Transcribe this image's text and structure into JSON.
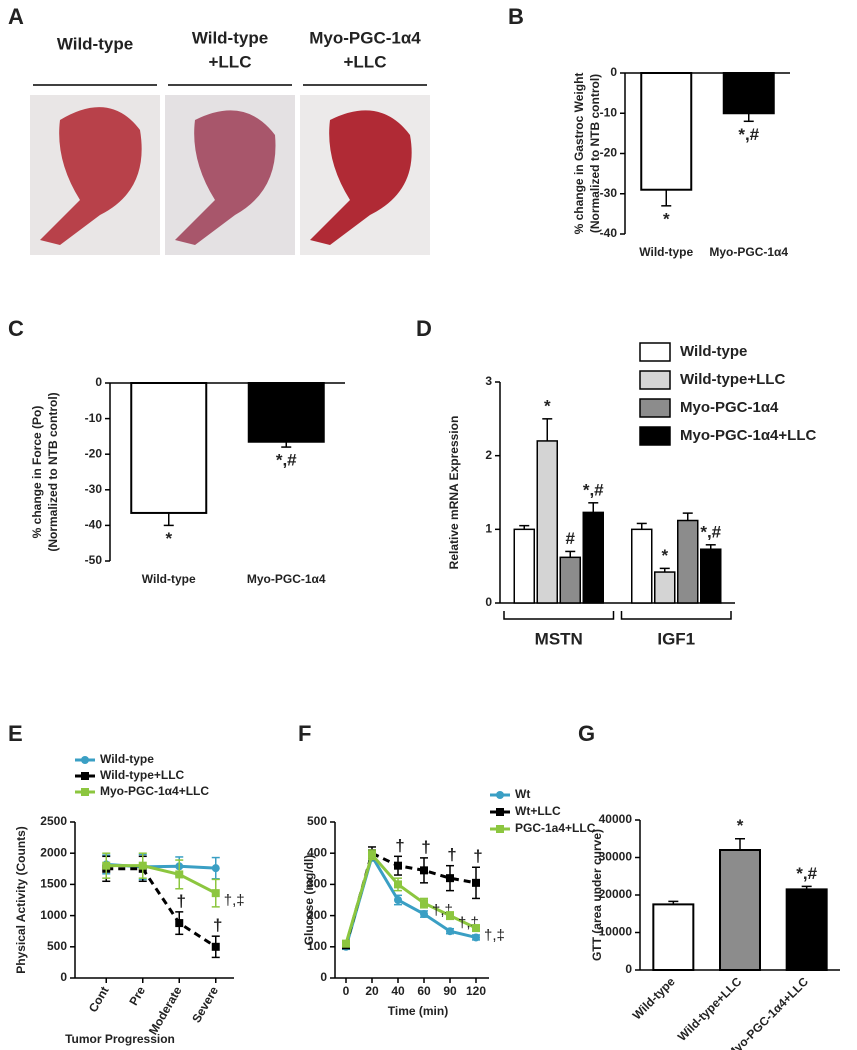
{
  "panel_a": {
    "label": "A",
    "captions": [
      [
        "Wild-type"
      ],
      [
        "Wild-type",
        "+LLC"
      ],
      [
        "Myo-PGC-1α4",
        "+LLC"
      ]
    ]
  },
  "chart_data": [
    {
      "type": "bar",
      "label": "B",
      "ylabel": [
        "% change in Gastroc Weight",
        "(Normalized to NTB control)"
      ],
      "categories": [
        "Wild-type",
        "Myo-PGC-1α4"
      ],
      "values": [
        -29,
        -10
      ],
      "errors": [
        4,
        2
      ],
      "colors": [
        "#ffffff",
        "#000000"
      ],
      "annotations": [
        "*",
        "*,#"
      ],
      "ylim": [
        -40,
        0
      ],
      "yticks": [
        0,
        -10,
        -20,
        -30,
        -40
      ]
    },
    {
      "type": "bar",
      "label": "C",
      "ylabel": [
        "% change in Force (Po)",
        "(Normalized to NTB control)"
      ],
      "categories": [
        "Wild-type",
        "Myo-PGC-1α4"
      ],
      "values": [
        -36.5,
        -16.5
      ],
      "errors": [
        3.5,
        1.5
      ],
      "colors": [
        "#ffffff",
        "#000000"
      ],
      "annotations": [
        "*",
        "*,#"
      ],
      "ylim": [
        -50,
        0
      ],
      "yticks": [
        0,
        -10,
        -20,
        -30,
        -40,
        -50
      ]
    },
    {
      "type": "groupedbar",
      "label": "D",
      "ylabel": [
        "Relative mRNA Expression"
      ],
      "categories": [
        "MSTN",
        "IGF1"
      ],
      "series": [
        {
          "name": "Wild-type",
          "color": "#ffffff",
          "values": [
            1.0,
            1.0
          ],
          "errors": [
            0.05,
            0.08
          ],
          "annotations": [
            null,
            null
          ]
        },
        {
          "name": "Wild-type+LLC",
          "color": "#d4d4d4",
          "values": [
            2.2,
            0.42
          ],
          "errors": [
            0.3,
            0.05
          ],
          "annotations": [
            "*",
            "*"
          ]
        },
        {
          "name": "Myo-PGC-1α4",
          "color": "#8c8c8c",
          "values": [
            0.62,
            1.12
          ],
          "errors": [
            0.08,
            0.1
          ],
          "annotations": [
            "#",
            null
          ]
        },
        {
          "name": "Myo-PGC-1α4+LLC",
          "color": "#000000",
          "values": [
            1.23,
            0.73
          ],
          "errors": [
            0.13,
            0.06
          ],
          "annotations": [
            "*,#",
            "*,#"
          ]
        }
      ],
      "ylim": [
        0,
        3
      ],
      "yticks": [
        0,
        1,
        2,
        3
      ]
    },
    {
      "type": "line",
      "label": "E",
      "ylabel": [
        "Physical Activity (Counts)"
      ],
      "xlabel": "Tumor Progression",
      "categories": [
        "Cont",
        "Pre",
        "Moderate",
        "Severe"
      ],
      "series": [
        {
          "name": "Wild-type",
          "color": "#3a9fc4",
          "dashed": false,
          "values": [
            1820,
            1780,
            1790,
            1760
          ],
          "errors": [
            150,
            200,
            150,
            170
          ],
          "annotations": [
            null,
            null,
            null,
            null
          ]
        },
        {
          "name": "Wild-type+LLC",
          "color": "#000000",
          "dashed": true,
          "values": [
            1750,
            1750,
            880,
            500
          ],
          "errors": [
            200,
            200,
            180,
            170
          ],
          "annotations": [
            null,
            null,
            "†",
            "†"
          ]
        },
        {
          "name": "Myo-PGC-1α4+LLC",
          "color": "#8cc63f",
          "dashed": false,
          "values": [
            1800,
            1800,
            1660,
            1360
          ],
          "errors": [
            200,
            200,
            230,
            220
          ],
          "annotations": [
            null,
            null,
            null,
            "†,‡"
          ]
        }
      ],
      "ylim": [
        0,
        2500
      ],
      "yticks": [
        0,
        500,
        1000,
        1500,
        2000,
        2500
      ]
    },
    {
      "type": "line",
      "label": "F",
      "ylabel": [
        "Glucose (mg/dl)"
      ],
      "xlabel": "Time (min)",
      "categories": [
        "0",
        "20",
        "40",
        "60",
        "90",
        "120"
      ],
      "series": [
        {
          "name": "Wt",
          "color": "#3a9fc4",
          "dashed": false,
          "values": [
            100,
            390,
            250,
            205,
            150,
            130
          ],
          "errors": [
            8,
            15,
            15,
            10,
            8,
            8
          ],
          "annotations": [
            null,
            null,
            null,
            null,
            null,
            null
          ]
        },
        {
          "name": "Wt+LLC",
          "color": "#000000",
          "dashed": true,
          "values": [
            105,
            400,
            360,
            345,
            320,
            305
          ],
          "errors": [
            10,
            20,
            30,
            40,
            40,
            50
          ],
          "annotations": [
            null,
            null,
            "†",
            "†",
            "†",
            "†"
          ]
        },
        {
          "name": "PGC-1a4+LLC",
          "color": "#8cc63f",
          "dashed": false,
          "values": [
            110,
            395,
            300,
            240,
            200,
            160
          ],
          "errors": [
            10,
            15,
            20,
            15,
            12,
            10
          ],
          "annotations": [
            null,
            null,
            null,
            "†,‡",
            "†,‡",
            "†,‡"
          ]
        }
      ],
      "ylim": [
        0,
        500
      ],
      "yticks": [
        0,
        100,
        200,
        300,
        400,
        500
      ]
    },
    {
      "type": "bar",
      "label": "G",
      "ylabel": [
        "GTT (area under curve)"
      ],
      "categories": [
        "Wild-type",
        "Wild-type+LLC",
        "Myo-PGC-1α4+LLC"
      ],
      "values": [
        17500,
        32000,
        21500
      ],
      "errors": [
        800,
        3000,
        800
      ],
      "colors": [
        "#ffffff",
        "#8c8c8c",
        "#000000"
      ],
      "annotations": [
        null,
        "*",
        "*,#"
      ],
      "ylim": [
        0,
        40000
      ],
      "yticks": [
        0,
        10000,
        20000,
        30000,
        40000
      ]
    }
  ]
}
